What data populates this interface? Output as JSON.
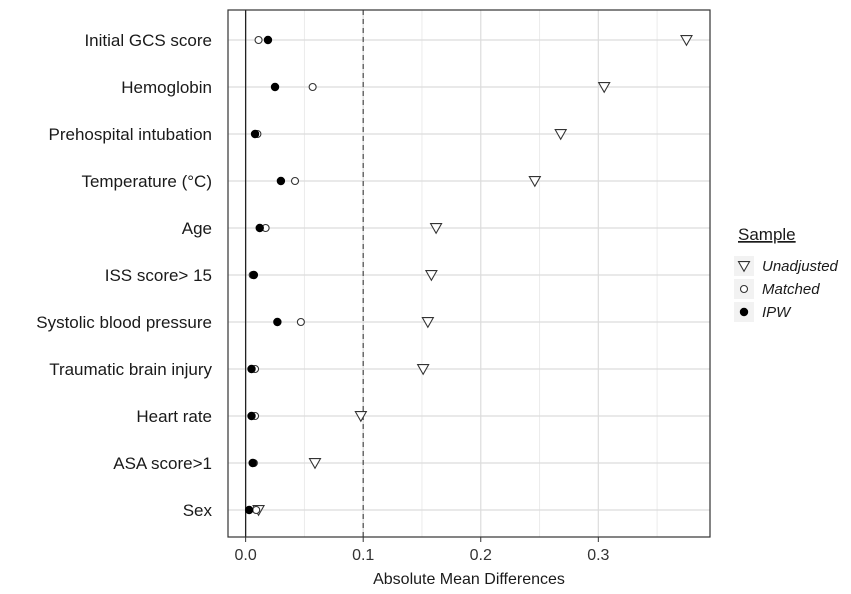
{
  "chart_data": {
    "type": "scatter",
    "title": "",
    "xlabel": "Absolute Mean Differences",
    "ylabel": "",
    "xlim": [
      -0.015,
      0.395
    ],
    "xticks": [
      0.0,
      0.1,
      0.2,
      0.3
    ],
    "xtick_labels": [
      "0.0",
      "0.1",
      "0.2",
      "0.3"
    ],
    "threshold": 0.1,
    "grid": true,
    "legend_position": "right",
    "legend_title": "Sample",
    "categories": [
      "Initial GCS score",
      "Hemoglobin",
      "Prehospital intubation",
      "Temperature (°C)",
      "Age",
      "ISS score> 15",
      "Systolic blood pressure",
      "Traumatic brain injury",
      "Heart rate",
      "ASA score>1",
      "Sex"
    ],
    "series": [
      {
        "name": "Unadjusted",
        "marker": "triangle-down",
        "values": [
          0.375,
          0.305,
          0.268,
          0.246,
          0.162,
          0.158,
          0.155,
          0.151,
          0.098,
          0.059,
          0.011
        ]
      },
      {
        "name": "Matched",
        "marker": "circle-open",
        "values": [
          0.011,
          0.057,
          0.01,
          0.042,
          0.017,
          0.006,
          0.047,
          0.008,
          0.008,
          0.007,
          0.009
        ]
      },
      {
        "name": "IPW",
        "marker": "circle-filled",
        "values": [
          0.019,
          0.025,
          0.008,
          0.03,
          0.012,
          0.007,
          0.027,
          0.005,
          0.005,
          0.006,
          0.003
        ]
      }
    ]
  }
}
